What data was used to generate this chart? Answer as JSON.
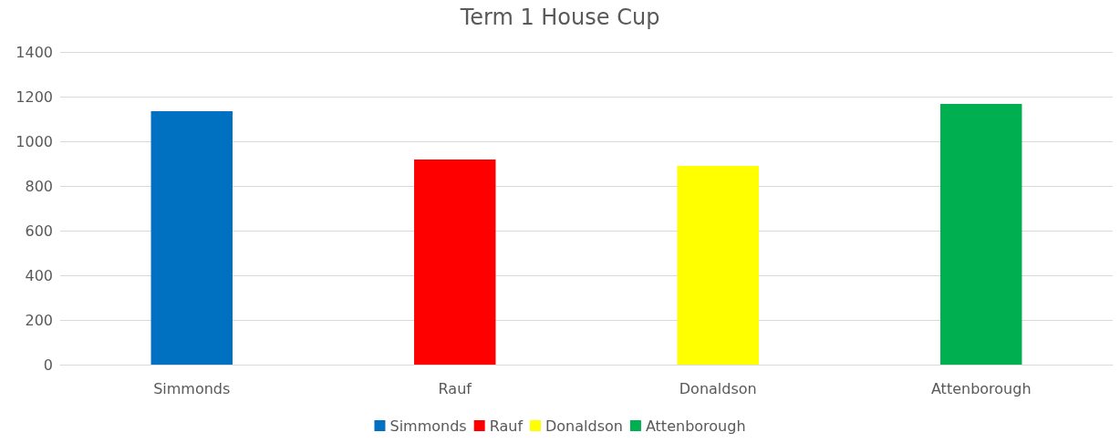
{
  "chart_data": {
    "type": "bar",
    "title": "Term 1 House Cup",
    "categories": [
      "Simmonds",
      "Rauf",
      "Donaldson",
      "Attenborough"
    ],
    "series": [
      {
        "name": "Simmonds",
        "color": "#0070c0",
        "values": [
          1135,
          null,
          null,
          null
        ]
      },
      {
        "name": "Rauf",
        "color": "#ff0000",
        "values": [
          null,
          918,
          null,
          null
        ]
      },
      {
        "name": "Donaldson",
        "color": "#ffff00",
        "values": [
          null,
          null,
          890,
          null
        ]
      },
      {
        "name": "Attenborough",
        "color": "#00b050",
        "values": [
          null,
          null,
          null,
          1167
        ]
      }
    ],
    "stacked": true,
    "ylim": [
      0,
      1400
    ],
    "yticks": [
      0,
      200,
      400,
      600,
      800,
      1000,
      1200,
      1400
    ],
    "grid": "y",
    "legend": "bottom"
  }
}
